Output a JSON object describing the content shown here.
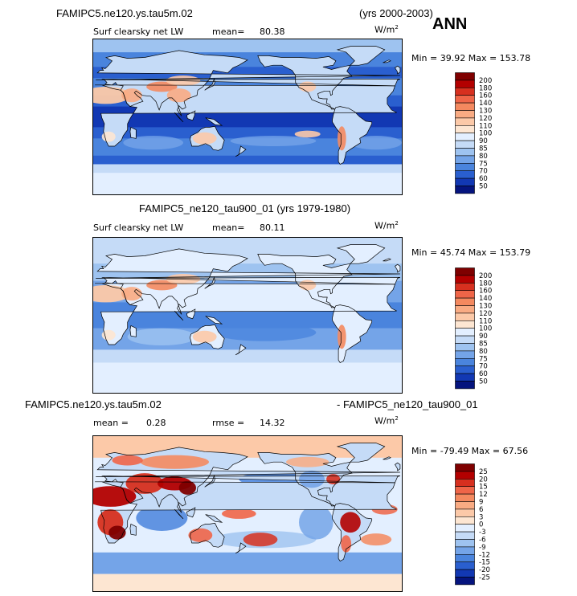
{
  "header": {
    "case_title": "FAMIPC5.ne120.ys.tau5m.02",
    "years": "(yrs 2000-2003)",
    "season": "ANN"
  },
  "panels": [
    {
      "title": "",
      "variable": "Surf clearsky net LW",
      "stat1_label": "mean=",
      "stat1_value": "80.38",
      "stat2_label": "",
      "stat2_value": "",
      "units": "W/m",
      "units_sup": "2",
      "minmax": "Min =  39.92 Max = 153.78",
      "colorbar": {
        "levels": [
          "200",
          "180",
          "160",
          "140",
          "130",
          "120",
          "110",
          "100",
          "90",
          "85",
          "80",
          "75",
          "70",
          "60",
          "50"
        ],
        "colors": [
          "#7f0000",
          "#b30000",
          "#d7301f",
          "#ef6548",
          "#f4895f",
          "#f9ab83",
          "#fcc9a8",
          "#fde6d2",
          "#e3efff",
          "#c5dbf7",
          "#9ec3f0",
          "#74a4e8",
          "#4a84dd",
          "#2a5fcf",
          "#1238b3",
          "#05147e"
        ]
      }
    },
    {
      "title": "FAMIPC5_ne120_tau900_01 (yrs 1979-1980)",
      "variable": "Surf clearsky net LW",
      "stat1_label": "mean=",
      "stat1_value": "80.11",
      "stat2_label": "",
      "stat2_value": "",
      "units": "W/m",
      "units_sup": "2",
      "minmax": "Min =  45.74 Max = 153.79",
      "colorbar": {
        "levels": [
          "200",
          "180",
          "160",
          "140",
          "130",
          "120",
          "110",
          "100",
          "90",
          "85",
          "80",
          "75",
          "70",
          "60",
          "50"
        ],
        "colors": [
          "#7f0000",
          "#b30000",
          "#d7301f",
          "#ef6548",
          "#f4895f",
          "#f9ab83",
          "#fcc9a8",
          "#fde6d2",
          "#e3efff",
          "#c5dbf7",
          "#9ec3f0",
          "#74a4e8",
          "#4a84dd",
          "#2a5fcf",
          "#1238b3",
          "#05147e"
        ]
      }
    },
    {
      "title_left": "FAMIPC5.ne120.ys.tau5m.02",
      "title_right": "- FAMIPC5_ne120_tau900_01",
      "variable": "",
      "stat1_label": "mean =",
      "stat1_value": "0.28",
      "stat2_label": "rmse =",
      "stat2_value": "14.32",
      "units": "W/m",
      "units_sup": "2",
      "minmax": "Min = -79.49 Max =  67.56",
      "colorbar": {
        "levels": [
          "25",
          "20",
          "15",
          "12",
          "9",
          "6",
          "3",
          "0",
          "-3",
          "-6",
          "-9",
          "-12",
          "-15",
          "-20",
          "-25"
        ],
        "colors": [
          "#7f0000",
          "#b30000",
          "#d7301f",
          "#ef6548",
          "#f4895f",
          "#f9ab83",
          "#fcc9a8",
          "#fde6d2",
          "#e3efff",
          "#c5dbf7",
          "#9ec3f0",
          "#74a4e8",
          "#4a84dd",
          "#2a5fcf",
          "#1238b3",
          "#05147e"
        ]
      }
    }
  ]
}
